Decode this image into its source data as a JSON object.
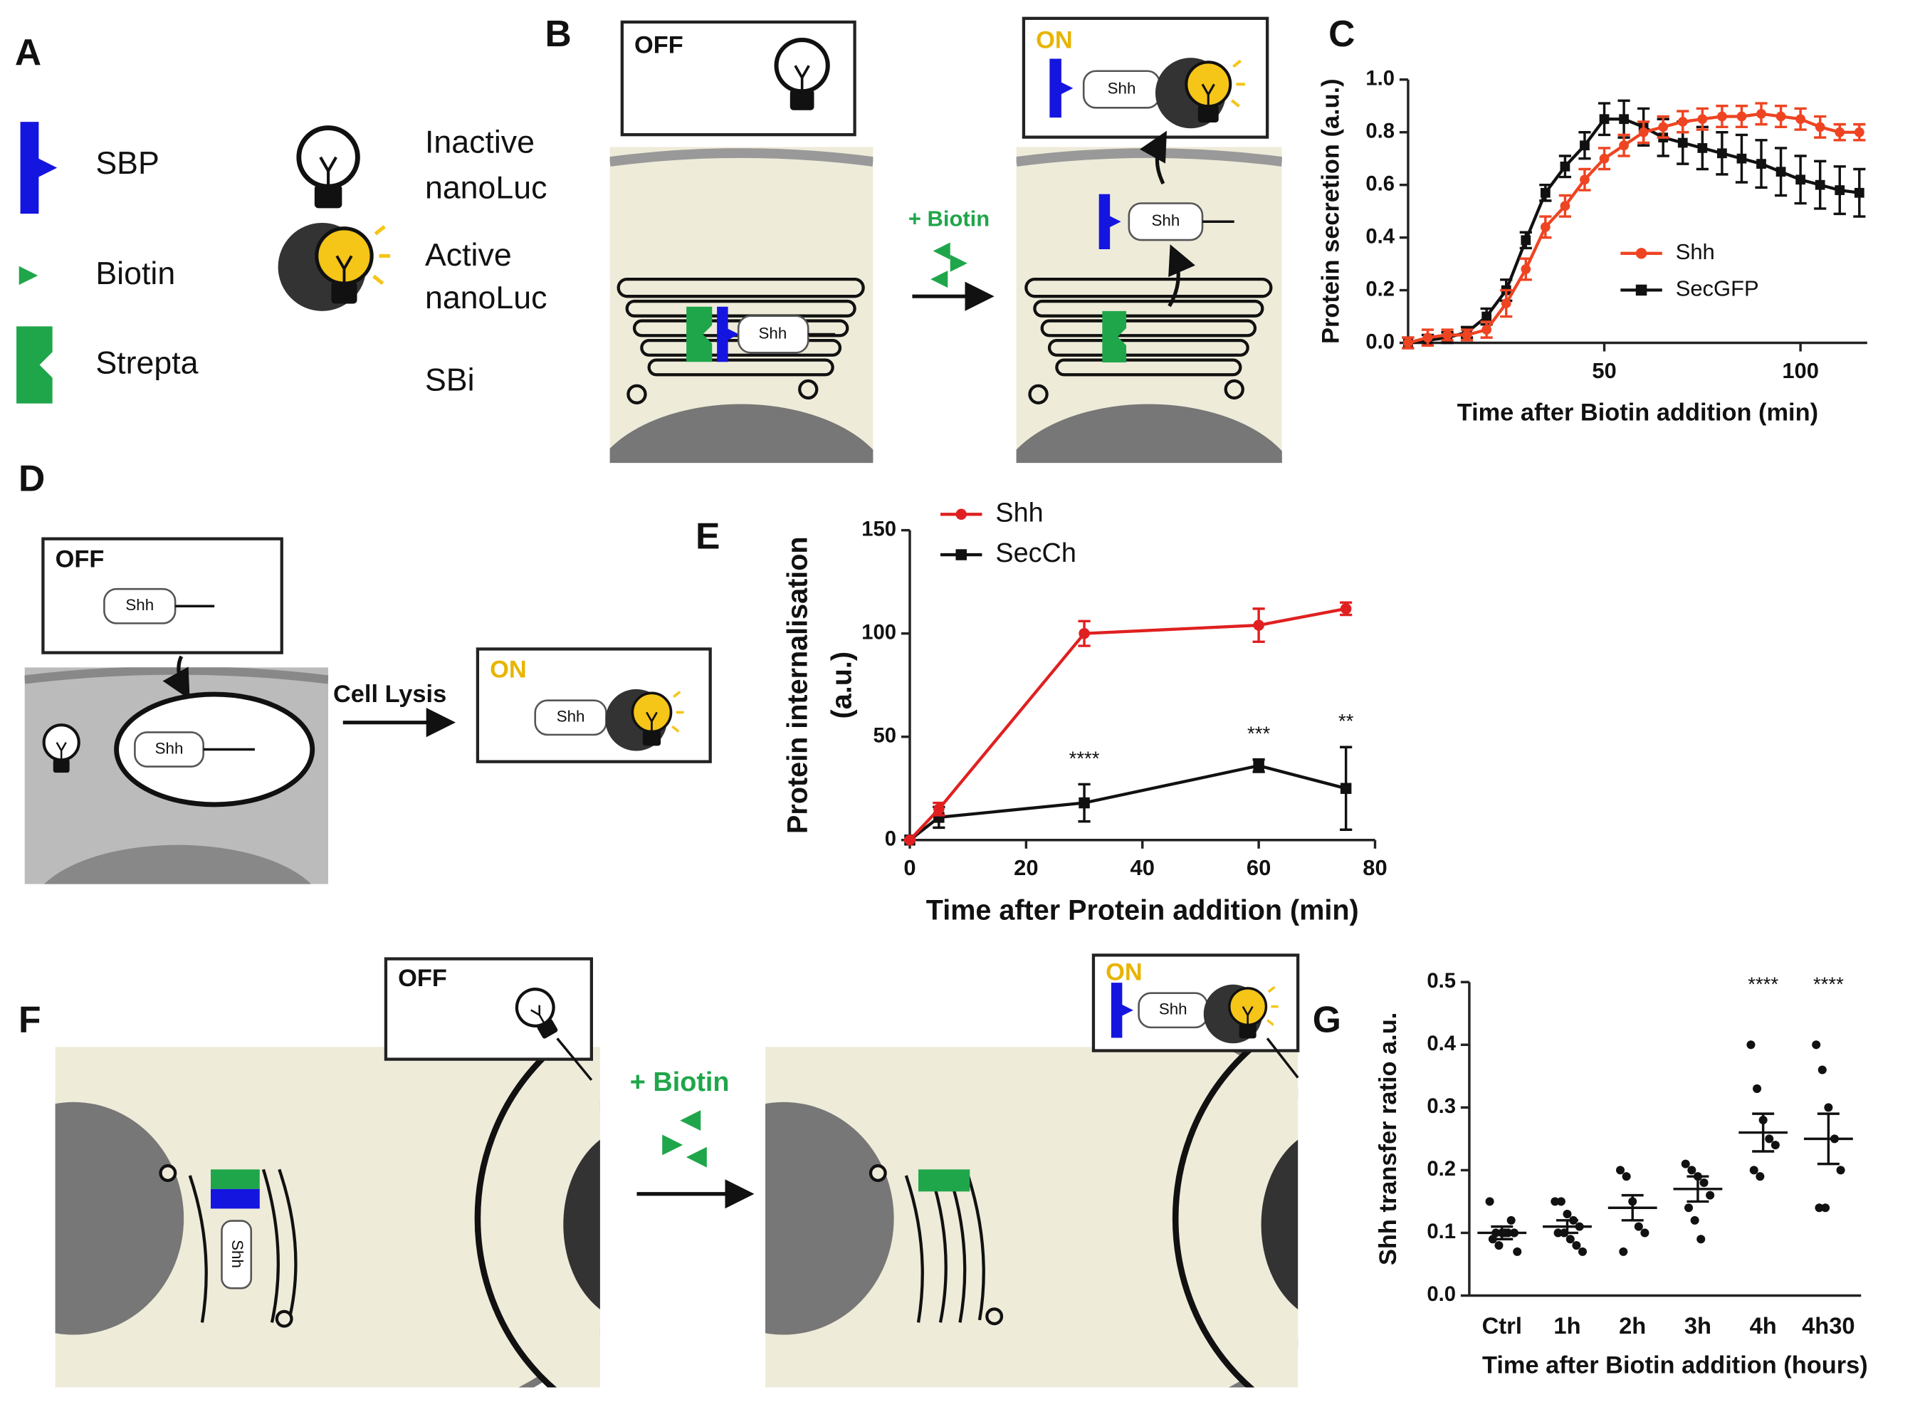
{
  "panel_labels": [
    "A",
    "B",
    "C",
    "D",
    "E",
    "F",
    "G"
  ],
  "legend_a": {
    "sbp": "SBP",
    "biotin": "Biotin",
    "strepta": "Strepta",
    "inactive": [
      "Inactive",
      "nanoLuc"
    ],
    "active": [
      "Active",
      "nanoLuc"
    ],
    "sbi": "SBi"
  },
  "diagram_b": {
    "off": "OFF",
    "on": "ON",
    "biotin": "+ Biotin",
    "shh": [
      "Shh",
      "Shh",
      "Shh"
    ]
  },
  "diagram_d": {
    "off": "OFF",
    "on": "ON",
    "lysis": "Cell Lysis",
    "shh": [
      "Shh",
      "Shh",
      "Shh"
    ]
  },
  "diagram_f": {
    "off": "OFF",
    "on": "ON",
    "biotin": "+ Biotin",
    "shh": [
      "Shh",
      "Shh"
    ]
  },
  "chart_data": [
    {
      "type": "line",
      "y_label": "Protein secretion (a.u.)",
      "x_label": "Time after Biotin addition (min)",
      "x": [
        0,
        5,
        10,
        15,
        20,
        25,
        30,
        35,
        40,
        45,
        50,
        55,
        60,
        65,
        70,
        75,
        80,
        85,
        90,
        95,
        100,
        105,
        110,
        115
      ],
      "xlim": [
        0,
        117
      ],
      "xticks": [
        50,
        100
      ],
      "ylim": [
        0,
        1
      ],
      "yticks": [
        {
          "value": 0,
          "label": "0.0"
        },
        {
          "value": 0.2,
          "label": "0.2"
        },
        {
          "value": 0.4,
          "label": "0.4"
        },
        {
          "value": 0.6,
          "label": "0.6"
        },
        {
          "value": 0.8,
          "label": "0.8"
        },
        {
          "value": 1,
          "label": "1.0"
        }
      ],
      "legend_position": "right",
      "series": [
        {
          "name": "Shh",
          "color": "#ee4422",
          "marker": "circle",
          "values": [
            0,
            0.02,
            0.03,
            0.03,
            0.05,
            0.15,
            0.28,
            0.44,
            0.52,
            0.62,
            0.7,
            0.75,
            0.8,
            0.82,
            0.84,
            0.85,
            0.86,
            0.86,
            0.87,
            0.86,
            0.85,
            0.82,
            0.8,
            0.8
          ],
          "errors": [
            0.02,
            0.03,
            0.02,
            0.02,
            0.03,
            0.05,
            0.04,
            0.04,
            0.04,
            0.04,
            0.04,
            0.04,
            0.04,
            0.04,
            0.04,
            0.04,
            0.04,
            0.04,
            0.04,
            0.04,
            0.04,
            0.04,
            0.03,
            0.03
          ]
        },
        {
          "name": "SecGFP",
          "color": "#111111",
          "marker": "square",
          "values": [
            0,
            0.01,
            0.02,
            0.04,
            0.1,
            0.2,
            0.39,
            0.57,
            0.67,
            0.75,
            0.85,
            0.85,
            0.82,
            0.78,
            0.76,
            0.74,
            0.72,
            0.7,
            0.68,
            0.65,
            0.62,
            0.6,
            0.58,
            0.57
          ],
          "errors": [
            0.02,
            0.02,
            0.02,
            0.02,
            0.03,
            0.04,
            0.03,
            0.03,
            0.04,
            0.05,
            0.06,
            0.07,
            0.07,
            0.07,
            0.08,
            0.08,
            0.08,
            0.09,
            0.09,
            0.09,
            0.09,
            0.09,
            0.09,
            0.09
          ]
        }
      ]
    },
    {
      "type": "line",
      "y_label": [
        "Protein internalisation",
        "(a.u.)"
      ],
      "x_label": "Time after Protein addition (min)",
      "x": [
        0,
        5,
        30,
        60,
        75
      ],
      "xlim": [
        0,
        80
      ],
      "xticks": [
        0,
        20,
        40,
        60,
        80
      ],
      "ylim": [
        0,
        150
      ],
      "yticks": [
        0,
        50,
        100,
        150
      ],
      "legend_position": "top",
      "significance": [
        null,
        null,
        "****",
        "***",
        "**"
      ],
      "series": [
        {
          "name": "Shh",
          "color": "#e02020",
          "marker": "circle",
          "values": [
            0,
            15,
            100,
            104,
            112
          ],
          "errors": [
            0,
            3,
            6,
            8,
            3
          ]
        },
        {
          "name": "SecCh",
          "color": "#111111",
          "marker": "square",
          "values": [
            0,
            11,
            18,
            36,
            25
          ],
          "errors": [
            0,
            5,
            9,
            3,
            20
          ]
        }
      ]
    },
    {
      "type": "dot",
      "y_label": "Shh transfer ratio a.u.",
      "x_label": "Time after Biotin addition (hours)",
      "categories": [
        "Ctrl",
        "1h",
        "2h",
        "3h",
        "4h",
        "4h30"
      ],
      "ylim": [
        0,
        0.5
      ],
      "yticks": [
        {
          "value": 0,
          "label": "0.0"
        },
        {
          "value": 0.1,
          "label": "0.1"
        },
        {
          "value": 0.2,
          "label": "0.2"
        },
        {
          "value": 0.3,
          "label": "0.3"
        },
        {
          "value": 0.4,
          "label": "0.4"
        },
        {
          "value": 0.5,
          "label": "0.5"
        }
      ],
      "color": "#111111",
      "points": [
        [
          0.15,
          0.1,
          0.1,
          0.1,
          0.1,
          0.09,
          0.08,
          0.1,
          0.12,
          0.07
        ],
        [
          0.15,
          0.15,
          0.13,
          0.12,
          0.11,
          0.1,
          0.1,
          0.09,
          0.08,
          0.07
        ],
        [
          0.2,
          0.19,
          0.15,
          0.11,
          0.1,
          0.07
        ],
        [
          0.21,
          0.2,
          0.19,
          0.18,
          0.16,
          0.14,
          0.12,
          0.09
        ],
        [
          0.4,
          0.33,
          0.28,
          0.25,
          0.24,
          0.2,
          0.19
        ],
        [
          0.4,
          0.36,
          0.3,
          0.25,
          0.2,
          0.14,
          0.14
        ]
      ],
      "means": [
        0.1,
        0.11,
        0.14,
        0.17,
        0.26,
        0.25
      ],
      "errors": [
        0.01,
        0.01,
        0.02,
        0.02,
        0.03,
        0.04
      ],
      "significance": [
        null,
        null,
        null,
        null,
        "****",
        "****"
      ]
    }
  ]
}
